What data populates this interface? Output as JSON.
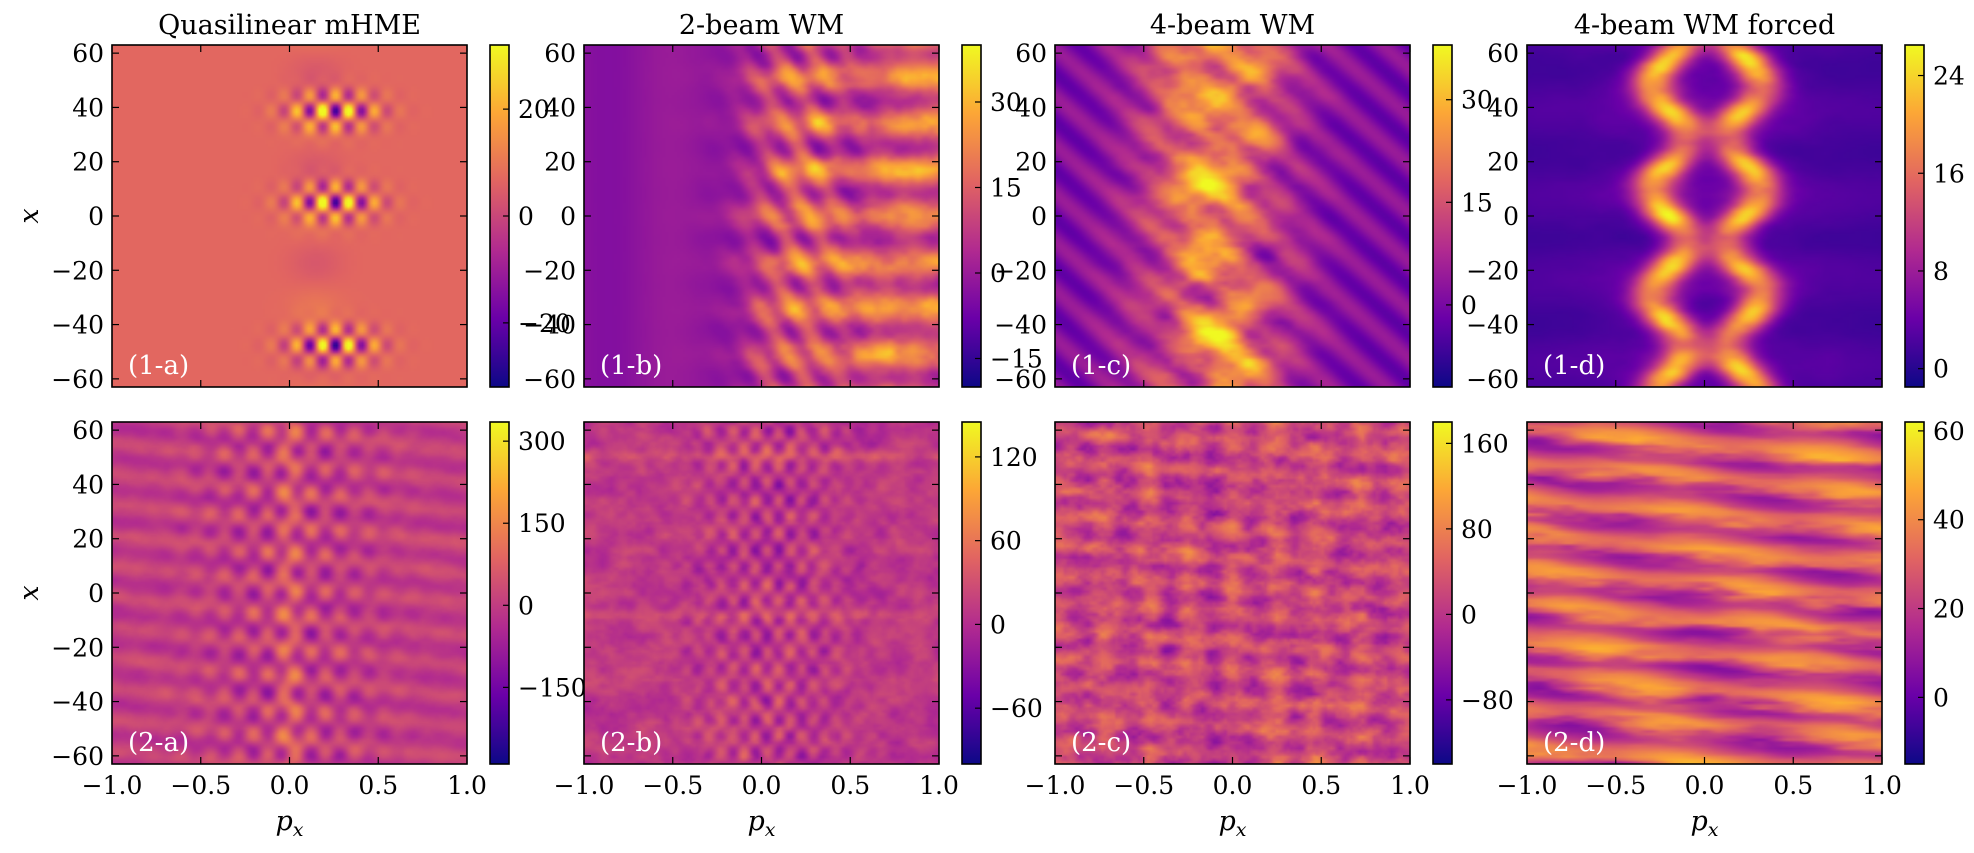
{
  "palette": [
    "#0d0887",
    "#6a00a8",
    "#b12a90",
    "#e16462",
    "#fca636",
    "#f0f921"
  ],
  "figure": {
    "x_axis_label": "p_x",
    "y_axis_label": "x"
  },
  "chart_data": [
    {
      "type": "heatmap",
      "id": "1-a",
      "title": "Quasilinear mHME",
      "panel_label": "(1-a)",
      "xlabel": "p_x",
      "ylabel": "x",
      "xlim": [
        -1.0,
        1.0
      ],
      "ylim": [
        -63,
        63
      ],
      "xticks": [
        "−1.0",
        "−0.5",
        "0.0",
        "0.5",
        "1.0"
      ],
      "yticks": [
        "60",
        "40",
        "20",
        "0",
        "−20",
        "−40",
        "−60"
      ],
      "colorbar": {
        "range": [
          -32,
          32
        ],
        "ticks": [
          {
            "value": 20,
            "label": "20"
          },
          {
            "value": 0,
            "label": "0"
          },
          {
            "value": -20,
            "label": "−20"
          }
        ]
      },
      "pattern": "quasilinear-localized"
    },
    {
      "type": "heatmap",
      "id": "1-b",
      "title": "2-beam WM",
      "panel_label": "(1-b)",
      "xlabel": "p_x",
      "ylabel": "x",
      "xlim": [
        -1.0,
        1.0
      ],
      "ylim": [
        -63,
        63
      ],
      "xticks": [
        "−1.0",
        "−0.5",
        "0.0",
        "0.5",
        "1.0"
      ],
      "yticks": [
        "60",
        "40",
        "20",
        "0",
        "−20",
        "−40",
        "−60"
      ],
      "colorbar": {
        "range": [
          -20,
          40
        ],
        "ticks": [
          {
            "value": 30,
            "label": "30"
          },
          {
            "value": 15,
            "label": "15"
          },
          {
            "value": 0,
            "label": "0"
          },
          {
            "value": -15,
            "label": "−15"
          }
        ]
      },
      "pattern": "two-beam-right"
    },
    {
      "type": "heatmap",
      "id": "1-c",
      "title": "4-beam WM",
      "panel_label": "(1-c)",
      "xlabel": "p_x",
      "ylabel": "x",
      "xlim": [
        -1.0,
        1.0
      ],
      "ylim": [
        -63,
        63
      ],
      "xticks": [
        "−1.0",
        "−0.5",
        "0.0",
        "0.5",
        "1.0"
      ],
      "yticks": [
        "60",
        "40",
        "20",
        "0",
        "−20",
        "−40",
        "−60"
      ],
      "colorbar": {
        "range": [
          -12,
          38
        ],
        "ticks": [
          {
            "value": 30,
            "label": "30"
          },
          {
            "value": 15,
            "label": "15"
          },
          {
            "value": 0,
            "label": "0"
          }
        ]
      },
      "pattern": "four-beam-band"
    },
    {
      "type": "heatmap",
      "id": "1-d",
      "title": "4-beam WM forced",
      "panel_label": "(1-d)",
      "xlabel": "p_x",
      "ylabel": "x",
      "xlim": [
        -1.0,
        1.0
      ],
      "ylim": [
        -63,
        63
      ],
      "xticks": [
        "−1.0",
        "−0.5",
        "0.0",
        "0.5",
        "1.0"
      ],
      "yticks": [
        "60",
        "40",
        "20",
        "0",
        "−20",
        "−40",
        "−60"
      ],
      "colorbar": {
        "range": [
          -1.5,
          26.5
        ],
        "ticks": [
          {
            "value": 24,
            "label": "24"
          },
          {
            "value": 16,
            "label": "16"
          },
          {
            "value": 8,
            "label": "8"
          },
          {
            "value": 0,
            "label": "0"
          }
        ]
      },
      "pattern": "forced-two-columns"
    },
    {
      "type": "heatmap",
      "id": "2-a",
      "title": "",
      "panel_label": "(2-a)",
      "xlabel": "p_x",
      "ylabel": "x",
      "xlim": [
        -1.0,
        1.0
      ],
      "ylim": [
        -63,
        63
      ],
      "xticks": [
        "−1.0",
        "−0.5",
        "0.0",
        "0.5",
        "1.0"
      ],
      "yticks": [
        "60",
        "40",
        "20",
        "0",
        "−20",
        "−40",
        "−60"
      ],
      "colorbar": {
        "range": [
          -290,
          335
        ],
        "ticks": [
          {
            "value": 300,
            "label": "300"
          },
          {
            "value": 150,
            "label": "150"
          },
          {
            "value": 0,
            "label": "0"
          },
          {
            "value": -150,
            "label": "−150"
          }
        ]
      },
      "pattern": "quasilinear-spread"
    },
    {
      "type": "heatmap",
      "id": "2-b",
      "title": "",
      "panel_label": "(2-b)",
      "xlabel": "p_x",
      "ylabel": "x",
      "xlim": [
        -1.0,
        1.0
      ],
      "ylim": [
        -63,
        63
      ],
      "xticks": [
        "−1.0",
        "−0.5",
        "0.0",
        "0.5",
        "1.0"
      ],
      "yticks": [],
      "colorbar": {
        "range": [
          -100,
          145
        ],
        "ticks": [
          {
            "value": 120,
            "label": "120"
          },
          {
            "value": 60,
            "label": "60"
          },
          {
            "value": 0,
            "label": "0"
          },
          {
            "value": -60,
            "label": "−60"
          }
        ]
      },
      "pattern": "turbulent-center"
    },
    {
      "type": "heatmap",
      "id": "2-c",
      "title": "",
      "panel_label": "(2-c)",
      "xlabel": "p_x",
      "ylabel": "x",
      "xlim": [
        -1.0,
        1.0
      ],
      "ylim": [
        -63,
        63
      ],
      "xticks": [
        "−1.0",
        "−0.5",
        "0.0",
        "0.5",
        "1.0"
      ],
      "yticks": [],
      "colorbar": {
        "range": [
          -140,
          180
        ],
        "ticks": [
          {
            "value": 160,
            "label": "160"
          },
          {
            "value": 80,
            "label": "80"
          },
          {
            "value": 0,
            "label": "0"
          },
          {
            "value": -80,
            "label": "−80"
          }
        ]
      },
      "pattern": "turbulent-uniform"
    },
    {
      "type": "heatmap",
      "id": "2-d",
      "title": "",
      "panel_label": "(2-d)",
      "xlabel": "p_x",
      "ylabel": "x",
      "xlim": [
        -1.0,
        1.0
      ],
      "ylim": [
        -63,
        63
      ],
      "xticks": [
        "−1.0",
        "−0.5",
        "0.0",
        "0.5",
        "1.0"
      ],
      "yticks": [],
      "colorbar": {
        "range": [
          -15,
          62
        ],
        "ticks": [
          {
            "value": 60,
            "label": "60"
          },
          {
            "value": 40,
            "label": "40"
          },
          {
            "value": 20,
            "label": "20"
          },
          {
            "value": 0,
            "label": "0"
          }
        ]
      },
      "pattern": "forced-horizontal-bands"
    }
  ]
}
